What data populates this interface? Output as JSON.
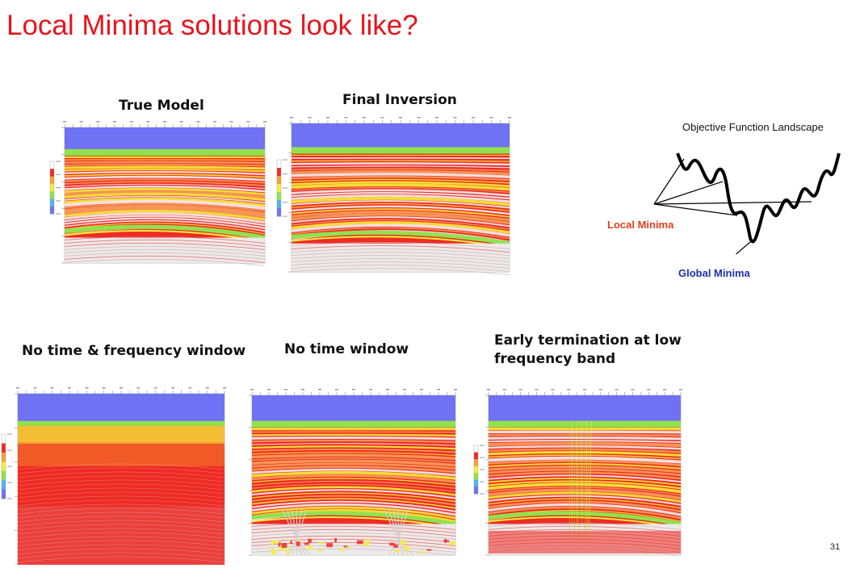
{
  "slide": {
    "title": "Local Minima solutions look like?",
    "page_number": "31"
  },
  "panels": [
    {
      "id": "true-model",
      "caption": "True Model",
      "style": "layered"
    },
    {
      "id": "final-inversion",
      "caption": "Final Inversion",
      "style": "layered"
    },
    {
      "id": "no-time-freq",
      "caption": "No time & frequency window",
      "style": "smooth"
    },
    {
      "id": "no-time",
      "caption": "No time window",
      "style": "cycle-skip"
    },
    {
      "id": "early-term",
      "caption_line1": "Early termination at low",
      "caption_line2": "frequency band",
      "style": "artifacts"
    }
  ],
  "landscape": {
    "title": "Objective Function Landscape",
    "local_label": "Local Minima",
    "global_label": "Global Minima",
    "colors": {
      "local": "#e0401c",
      "global": "#1d2fb0"
    }
  },
  "colors": {
    "title": "#e8141c",
    "water": "#6f72f2",
    "red": "#ee2b24",
    "yellow": "#f4ef3a",
    "green": "#8fe24e",
    "white": "#f5f2f2"
  }
}
